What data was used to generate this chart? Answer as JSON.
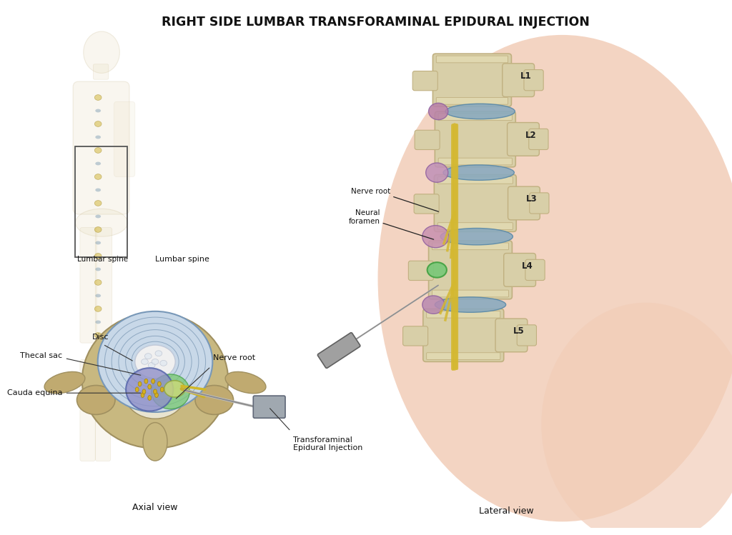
{
  "title": "RIGHT SIDE LUMBAR TRANSFORAMINAL EPIDURAL INJECTION",
  "title_fontsize": 12.5,
  "title_fontweight": "bold",
  "bg_color": "#ffffff",
  "fig_width": 10.24,
  "fig_height": 7.49,
  "axial_view_label": "Axial view",
  "lateral_view_label": "Lateral view",
  "labels": {
    "nerve_root_top": "Nerve root",
    "neural_foramen": "Neural\nforamen",
    "lumbar_spine": "Lumbar spine",
    "disc": "Disc",
    "nerve_root_axial": "Nerve root",
    "transforaminal": "Transforaminal\nEpidural Injection",
    "cauda_equina": "Cauda equina",
    "thecal_sac": "Thecal sac"
  },
  "skin_color": "#f2cdb8",
  "bone_color_light": "#d8cfa8",
  "bone_color_dark": "#c0b080",
  "disc_color": "#8aaabf",
  "nerve_purple": "#c8a8c8",
  "nerve_pink": "#d898a8",
  "injection_green": "#78c878",
  "needle_color": "#909090",
  "yellow_nerve": "#d4b830",
  "thecal_blue": "#8090c0",
  "cauda_yellow": "#d4b020",
  "vertebra_L_positions": [
    130,
    210,
    300,
    395,
    485
  ],
  "vertebra_labels": [
    "L1",
    "L2",
    "L3",
    "L4",
    "L5"
  ]
}
